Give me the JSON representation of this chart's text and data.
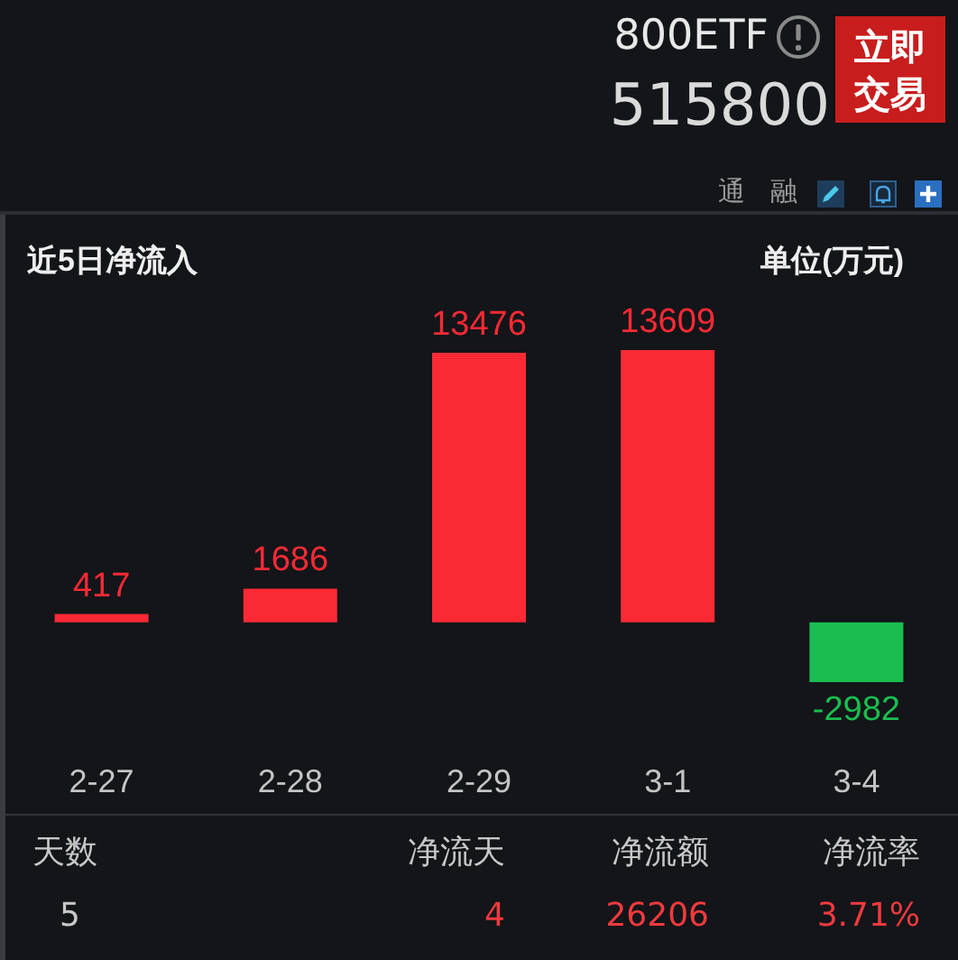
{
  "chart_data": [
    {
      "type": "other",
      "title": "800ETF",
      "subtitle": "515800",
      "annotations": [
        "立即交易",
        "通",
        "融"
      ]
    },
    {
      "type": "bar",
      "title": "近5日净流入",
      "ylabel": "单位(万元)",
      "categories": [
        "2-27",
        "2-28",
        "2-29",
        "3-1",
        "3-4"
      ],
      "values": [
        417,
        1686,
        13476,
        13609,
        -2982
      ],
      "colors": [
        "#fa2a35",
        "#fa2a35",
        "#fa2a35",
        "#fa2a35",
        "#1bbd50"
      ],
      "data_labels": true
    },
    {
      "type": "other",
      "annotations": [
        "天数",
        "净流天",
        "净流额",
        "净流率",
        "5",
        "4",
        "26206",
        "3.71%"
      ]
    }
  ]
}
